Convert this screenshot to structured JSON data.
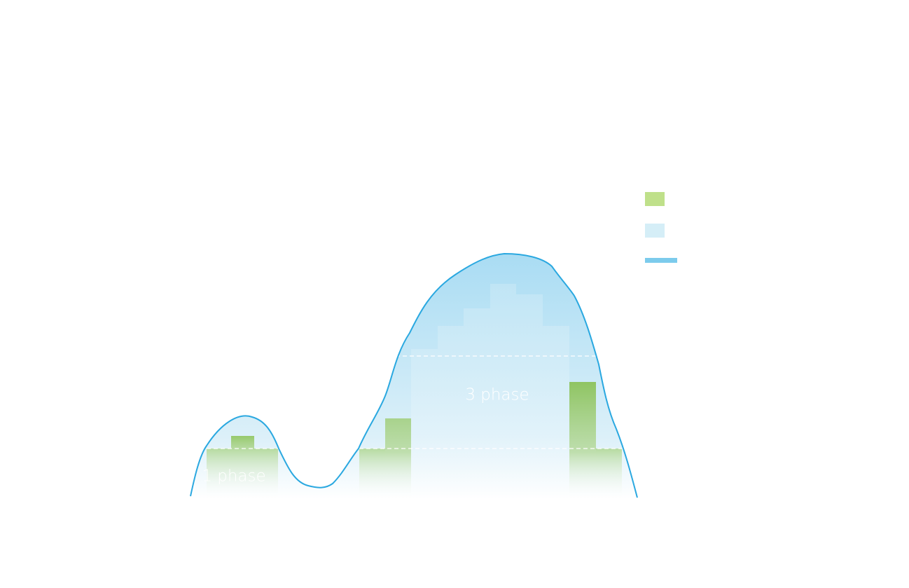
{
  "labels": {
    "phase_1": "1 phase",
    "phase_3": "3 phase"
  }
}
